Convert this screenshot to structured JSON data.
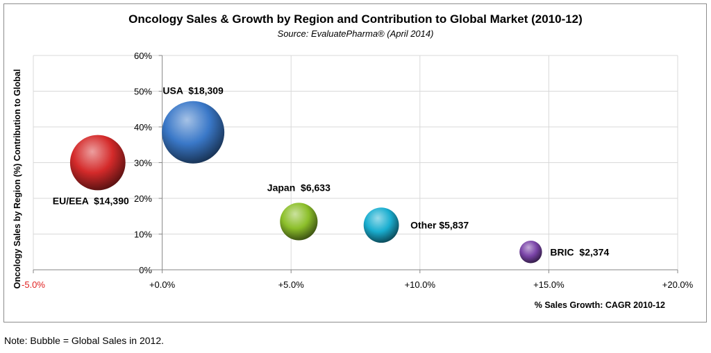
{
  "chart_data": {
    "type": "bubble",
    "title": "Oncology Sales & Growth by Region and Contribution to Global Market  (2010-12)",
    "subtitle": "Source: EvaluatePharma® (April 2014)",
    "xlabel": "% Sales Growth: CAGR 2010-12",
    "ylabel": "Oncology Sales by Region (%) Contribution to Global",
    "xlim": [
      -5.0,
      20.0
    ],
    "ylim": [
      0,
      60
    ],
    "x_ticks": [
      -5.0,
      0.0,
      5.0,
      10.0,
      15.0,
      20.0
    ],
    "x_tick_labels": [
      "-5.0%",
      "+0.0%",
      "+5.0%",
      "+10.0%",
      "+15.0%",
      "+20.0%"
    ],
    "y_ticks": [
      0,
      10,
      20,
      30,
      40,
      50,
      60
    ],
    "y_tick_labels": [
      "0%",
      "10%",
      "20%",
      "30%",
      "40%",
      "50%",
      "60%"
    ],
    "grid": true,
    "series": [
      {
        "label": "USA  $18,309",
        "x": 1.2,
        "y": 38.5,
        "size": 18309,
        "color": "#3a78c8"
      },
      {
        "label": "EU/EEA  $14,390",
        "x": -2.5,
        "y": 30.0,
        "size": 14390,
        "color": "#d42a2a"
      },
      {
        "label": "Japan  $6,633",
        "x": 5.3,
        "y": 13.5,
        "size": 6633,
        "color": "#8cbf2a"
      },
      {
        "label": "Other $5,837",
        "x": 8.5,
        "y": 12.5,
        "size": 5837,
        "color": "#1aaed0"
      },
      {
        "label": "BRIC  $2,374",
        "x": 14.3,
        "y": 5.0,
        "size": 2374,
        "color": "#7a44a8"
      }
    ]
  },
  "note": "Note: Bubble = Global Sales in 2012."
}
